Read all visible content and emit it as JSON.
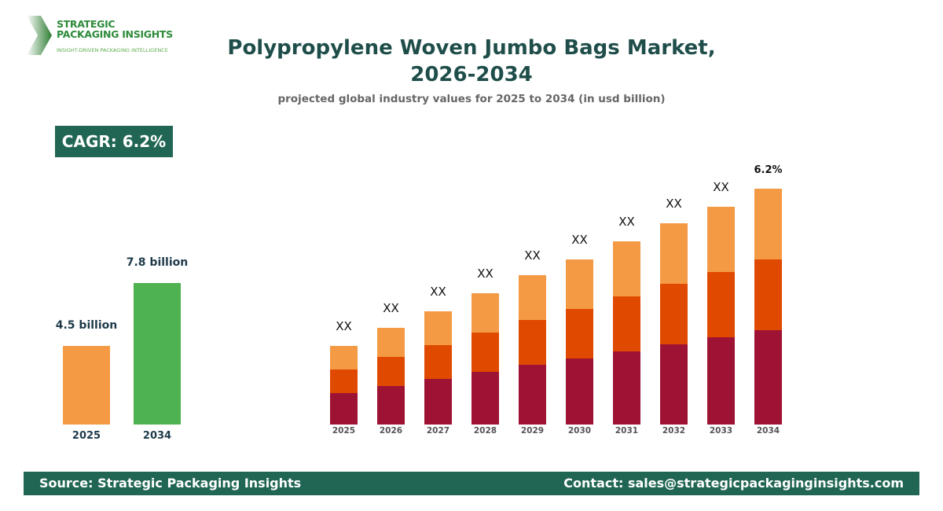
{
  "logo": {
    "line1": "STRATEGIC",
    "line2": "PACKAGING INSIGHTS",
    "tagline": "INSIGHT-DRIVEN PACKAGING INTELLIGENCE"
  },
  "header": {
    "title_line1": "Polypropylene Woven Jumbo Bags Market,",
    "title_line2": "2026-2034",
    "subtitle": "projected global industry values for 2025 to 2034 (in usd billion)"
  },
  "cagr_badge": "CAGR: 6.2%",
  "footer": {
    "source": "Source: Strategic Packaging Insights",
    "contact": "Contact: sales@strategicpackaginginsights.com"
  },
  "colors": {
    "brand": "#216654",
    "seg_bottom": "#9e1233",
    "seg_mid": "#e04a00",
    "seg_top": "#f49a45",
    "bar_2025": "#f49a45",
    "bar_2034": "#4db24f"
  },
  "chart_data": [
    {
      "type": "bar",
      "categories": [
        "2025",
        "2034"
      ],
      "values": [
        4.5,
        7.8
      ],
      "data_labels": [
        "4.5 billion",
        "7.8 billion"
      ],
      "ylabel": "",
      "xlabel": ""
    },
    {
      "type": "bar",
      "stacked": true,
      "categories": [
        "2025",
        "2026",
        "2027",
        "2028",
        "2029",
        "2030",
        "2031",
        "2032",
        "2033",
        "2034"
      ],
      "series": [
        {
          "values": [
            4.0,
            4.9,
            5.8,
            6.7,
            7.6,
            8.4,
            9.3,
            10.2,
            11.1,
            12.0
          ]
        },
        {
          "values": [
            3.0,
            3.7,
            4.3,
            5.0,
            5.7,
            6.3,
            7.0,
            7.7,
            8.3,
            9.0
          ]
        },
        {
          "values": [
            3.0,
            3.7,
            4.3,
            5.0,
            5.7,
            6.3,
            7.0,
            7.7,
            8.3,
            9.0
          ]
        }
      ],
      "data_labels": [
        "XX",
        "XX",
        "XX",
        "XX",
        "XX",
        "XX",
        "XX",
        "XX",
        "XX",
        "6.2%"
      ],
      "ylim": [
        0,
        30
      ],
      "grid": false,
      "xlabel": "",
      "ylabel": ""
    }
  ]
}
